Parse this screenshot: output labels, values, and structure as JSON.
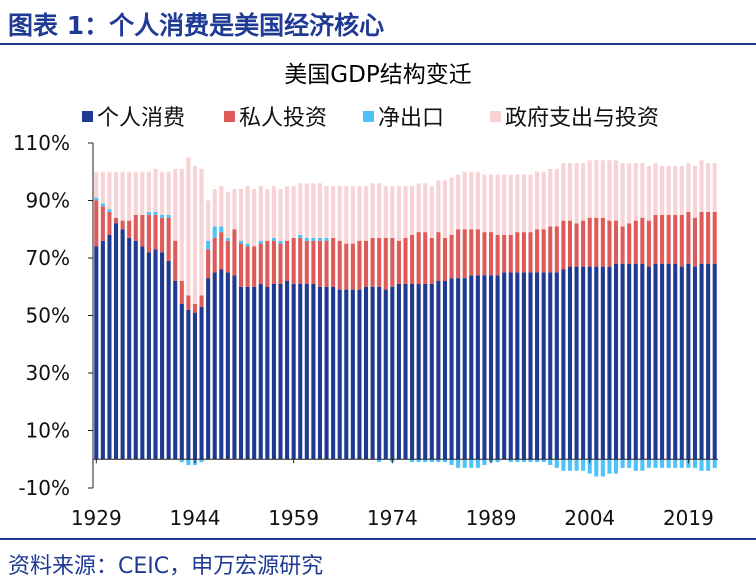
{
  "figure_title": "图表 1：个人消费是美国经济核心",
  "source": "资料来源：CEIC，申万宏源研究",
  "colors": {
    "consumption": "#1f3a93",
    "investment": "#e05a5a",
    "net_exports": "#4fc3f7",
    "government": "#f8d3d6",
    "text": "#1f3a93",
    "axis": "#222222"
  },
  "chart_data": {
    "type": "bar",
    "stacked": true,
    "title": "美国GDP结构变迁",
    "legend": {
      "position": "top",
      "entries": [
        "个人消费",
        "私人投资",
        "净出口",
        "政府支出与投资"
      ]
    },
    "y_ticks": [
      "110%",
      "90%",
      "70%",
      "50%",
      "30%",
      "10%",
      "-10%"
    ],
    "ylim": [
      -10,
      110
    ],
    "x_ticks": [
      "1929",
      "1944",
      "1959",
      "1974",
      "1989",
      "2004",
      "2019"
    ],
    "x": [
      1929,
      1930,
      1931,
      1932,
      1933,
      1934,
      1935,
      1936,
      1937,
      1938,
      1939,
      1940,
      1941,
      1942,
      1943,
      1944,
      1945,
      1946,
      1947,
      1948,
      1949,
      1950,
      1951,
      1952,
      1953,
      1954,
      1955,
      1956,
      1957,
      1958,
      1959,
      1960,
      1961,
      1962,
      1963,
      1964,
      1965,
      1966,
      1967,
      1968,
      1969,
      1970,
      1971,
      1972,
      1973,
      1974,
      1975,
      1976,
      1977,
      1978,
      1979,
      1980,
      1981,
      1982,
      1983,
      1984,
      1985,
      1986,
      1987,
      1988,
      1989,
      1990,
      1991,
      1992,
      1993,
      1994,
      1995,
      1996,
      1997,
      1998,
      1999,
      2000,
      2001,
      2002,
      2003,
      2004,
      2005,
      2006,
      2007,
      2008,
      2009,
      2010,
      2011,
      2012,
      2013,
      2014,
      2015,
      2016,
      2017,
      2018,
      2019,
      2020,
      2021,
      2022,
      2023
    ],
    "series": [
      {
        "name": "个人消费",
        "values": [
          74,
          76,
          78,
          82,
          80,
          77,
          76,
          74,
          72,
          73,
          72,
          69,
          62,
          54,
          52,
          51,
          53,
          63,
          65,
          66,
          65,
          64,
          60,
          60,
          60,
          61,
          60,
          61,
          61,
          62,
          61,
          61,
          61,
          61,
          60,
          60,
          60,
          59,
          59,
          59,
          59,
          60,
          60,
          60,
          59,
          60,
          61,
          61,
          61,
          61,
          61,
          61,
          62,
          62,
          63,
          63,
          63,
          64,
          64,
          64,
          64,
          64,
          65,
          65,
          65,
          65,
          65,
          65,
          65,
          65,
          65,
          66,
          67,
          67,
          67,
          67,
          67,
          67,
          67,
          68,
          68,
          68,
          68,
          68,
          67,
          68,
          68,
          68,
          68,
          67,
          68,
          67,
          68,
          68,
          68
        ]
      },
      {
        "name": "私人投资",
        "values": [
          16,
          12,
          8,
          2,
          3,
          6,
          9,
          11,
          13,
          12,
          12,
          15,
          14,
          8,
          5,
          3,
          4,
          10,
          12,
          13,
          11,
          16,
          15,
          14,
          14,
          14,
          16,
          15,
          14,
          14,
          16,
          16,
          15,
          15,
          16,
          16,
          17,
          17,
          16,
          16,
          17,
          16,
          17,
          17,
          18,
          17,
          15,
          16,
          17,
          18,
          18,
          16,
          17,
          15,
          15,
          17,
          17,
          16,
          16,
          15,
          15,
          14,
          13,
          13,
          14,
          14,
          14,
          15,
          15,
          16,
          16,
          17,
          16,
          15,
          16,
          17,
          17,
          17,
          16,
          15,
          13,
          14,
          15,
          16,
          16,
          17,
          17,
          17,
          17,
          18,
          18,
          17,
          18,
          18,
          18
        ]
      },
      {
        "name": "净出口",
        "values": [
          1,
          1,
          1,
          0,
          0,
          0,
          0,
          0,
          1,
          1,
          1,
          1,
          0,
          -1,
          -2,
          -2,
          -1,
          3,
          4,
          2,
          1,
          0,
          1,
          1,
          0,
          1,
          0,
          1,
          1,
          0,
          0,
          1,
          1,
          1,
          1,
          1,
          0,
          0,
          0,
          0,
          0,
          0,
          0,
          -1,
          0,
          -1,
          0,
          0,
          -1,
          -1,
          -1,
          -1,
          -1,
          -1,
          -2,
          -3,
          -3,
          -3,
          -3,
          -2,
          -1,
          -1,
          0,
          -1,
          -1,
          -1,
          -1,
          -1,
          -1,
          -2,
          -3,
          -4,
          -4,
          -4,
          -4,
          -5,
          -6,
          -6,
          -5,
          -5,
          -3,
          -3,
          -4,
          -4,
          -3,
          -3,
          -3,
          -3,
          -3,
          -3,
          -3,
          -3,
          -4,
          -4,
          -3
        ]
      },
      {
        "name": "政府支出与投资",
        "values": [
          9,
          11,
          13,
          16,
          17,
          17,
          15,
          15,
          14,
          15,
          15,
          15,
          25,
          39,
          48,
          48,
          44,
          14,
          13,
          14,
          16,
          14,
          18,
          20,
          20,
          19,
          18,
          18,
          18,
          19,
          18,
          18,
          19,
          19,
          19,
          18,
          18,
          19,
          20,
          20,
          19,
          19,
          19,
          19,
          18,
          18,
          19,
          18,
          17,
          17,
          17,
          18,
          18,
          20,
          20,
          19,
          20,
          20,
          20,
          20,
          20,
          21,
          21,
          21,
          20,
          20,
          20,
          20,
          20,
          20,
          20,
          20,
          20,
          21,
          20,
          20,
          20,
          20,
          21,
          21,
          22,
          21,
          20,
          19,
          19,
          18,
          17,
          17,
          17,
          17,
          17,
          18,
          18,
          17,
          17
        ]
      }
    ]
  }
}
